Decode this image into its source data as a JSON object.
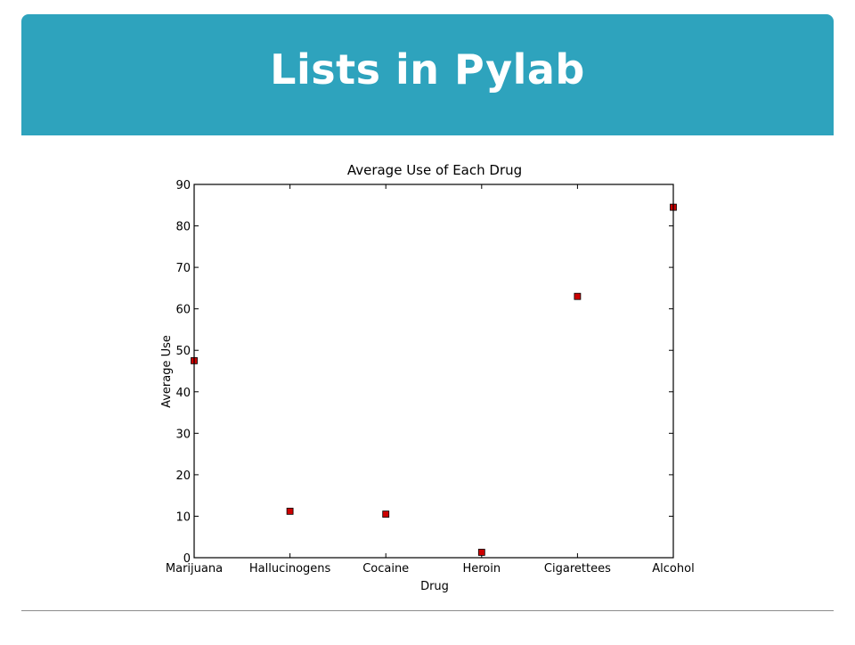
{
  "slide": {
    "title": "Lists in Pylab",
    "banner_color": "#2ea3bd"
  },
  "chart_data": {
    "type": "scatter",
    "title": "Average Use of Each Drug",
    "xlabel": "Drug",
    "ylabel": "Average Use",
    "categories": [
      "Marijuana",
      "Hallucinogens",
      "Cocaine",
      "Heroin",
      "Cigarettees",
      "Alcohol"
    ],
    "values": [
      47.5,
      11.2,
      10.5,
      1.3,
      63.0,
      84.5
    ],
    "ylim": [
      0,
      90
    ],
    "yticks": [
      0,
      10,
      20,
      30,
      40,
      50,
      60,
      70,
      80,
      90
    ],
    "marker": "square",
    "marker_color": "#cc0000",
    "grid": false
  }
}
